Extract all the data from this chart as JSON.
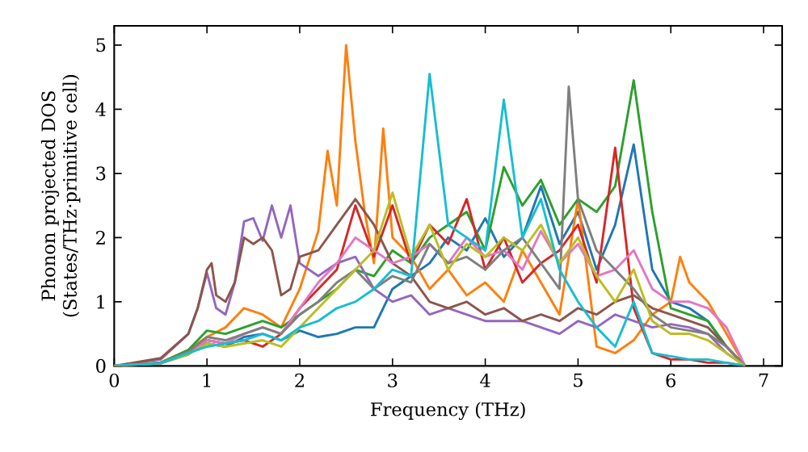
{
  "chart_data": {
    "type": "line",
    "xlabel": "Frequency (THz)",
    "ylabel": "Phonon projected DOS (States/THz·primitive cell)",
    "xlim": [
      0,
      7.2
    ],
    "ylim": [
      0,
      5.3
    ],
    "xticks": [
      0,
      1,
      2,
      3,
      4,
      5,
      6,
      7
    ],
    "yticks": [
      0,
      1,
      2,
      3,
      4,
      5
    ],
    "x": [
      0,
      0.5,
      0.8,
      1.0,
      1.2,
      1.4,
      1.6,
      1.8,
      2.0,
      2.2,
      2.4,
      2.6,
      2.8,
      3.0,
      3.2,
      3.4,
      3.6,
      3.8,
      4.0,
      4.2,
      4.4,
      4.6,
      4.8,
      5.0,
      5.2,
      5.4,
      5.6,
      5.8,
      6.0,
      6.2,
      6.4,
      6.6,
      6.8
    ],
    "series": [
      {
        "color": "#1f77b4",
        "values": [
          0,
          0.05,
          0.2,
          0.35,
          0.3,
          0.45,
          0.5,
          0.4,
          0.55,
          0.45,
          0.5,
          0.6,
          0.6,
          1.2,
          1.4,
          1.6,
          2.0,
          1.8,
          2.3,
          1.7,
          2.0,
          2.8,
          1.9,
          2.4,
          1.5,
          2.2,
          3.45,
          1.5,
          1.0,
          0.9,
          0.7,
          0.3,
          0
        ]
      },
      {
        "color": "#ff7f0e",
        "x": [
          0,
          0.5,
          0.8,
          1.0,
          1.2,
          1.4,
          1.6,
          1.8,
          2.0,
          2.2,
          2.3,
          2.4,
          2.5,
          2.6,
          2.7,
          2.8,
          2.9,
          3.0,
          3.2,
          3.4,
          3.6,
          3.8,
          4.0,
          4.2,
          4.4,
          4.6,
          4.8,
          5.0,
          5.2,
          5.4,
          5.6,
          5.8,
          6.0,
          6.1,
          6.2,
          6.4,
          6.6,
          6.8
        ],
        "values": [
          0,
          0.05,
          0.25,
          0.45,
          0.6,
          0.9,
          0.8,
          0.6,
          1.2,
          2.1,
          3.35,
          2.5,
          5.0,
          3.5,
          2.4,
          1.6,
          3.7,
          2.0,
          1.7,
          1.2,
          1.5,
          1.1,
          1.3,
          1.0,
          1.8,
          1.3,
          0.8,
          2.6,
          0.3,
          0.2,
          0.4,
          0.8,
          1.0,
          1.7,
          1.3,
          1.0,
          0.5,
          0
        ]
      },
      {
        "color": "#2ca02c",
        "values": [
          0,
          0.05,
          0.25,
          0.55,
          0.5,
          0.6,
          0.7,
          0.6,
          0.8,
          1.0,
          1.2,
          1.5,
          1.4,
          1.8,
          1.6,
          2.0,
          2.2,
          2.4,
          1.8,
          3.1,
          2.5,
          2.9,
          2.2,
          2.6,
          2.4,
          2.8,
          4.45,
          2.4,
          0.9,
          0.8,
          0.7,
          0.3,
          0
        ]
      },
      {
        "color": "#d62728",
        "values": [
          0,
          0.04,
          0.18,
          0.4,
          0.35,
          0.4,
          0.3,
          0.5,
          0.9,
          1.2,
          1.5,
          2.5,
          1.7,
          2.5,
          1.6,
          2.2,
          1.9,
          2.6,
          1.5,
          2.0,
          1.3,
          1.6,
          1.8,
          2.2,
          1.3,
          3.4,
          0.9,
          0.2,
          0.1,
          0.1,
          0.05,
          0.05,
          0
        ]
      },
      {
        "color": "#9467bd",
        "x": [
          0,
          0.5,
          0.8,
          0.9,
          1.0,
          1.1,
          1.2,
          1.3,
          1.4,
          1.5,
          1.6,
          1.7,
          1.8,
          1.9,
          2.0,
          2.2,
          2.4,
          2.6,
          2.8,
          3.0,
          3.2,
          3.4,
          3.6,
          3.8,
          4.0,
          4.2,
          4.4,
          4.6,
          4.8,
          5.0,
          5.2,
          5.4,
          5.6,
          5.8,
          6.0,
          6.2,
          6.4,
          6.6,
          6.8
        ],
        "values": [
          0,
          0.1,
          0.5,
          0.9,
          1.45,
          0.9,
          0.8,
          1.3,
          2.25,
          2.3,
          1.95,
          2.5,
          2.0,
          2.5,
          1.6,
          1.4,
          1.6,
          1.7,
          1.2,
          1.0,
          1.1,
          0.8,
          0.9,
          0.8,
          0.7,
          0.7,
          0.7,
          0.6,
          0.5,
          0.7,
          0.6,
          0.8,
          0.7,
          0.6,
          0.65,
          0.6,
          0.5,
          0.2,
          0
        ]
      },
      {
        "color": "#8c564b",
        "x": [
          0,
          0.5,
          0.8,
          0.9,
          1.0,
          1.05,
          1.1,
          1.2,
          1.3,
          1.4,
          1.5,
          1.6,
          1.7,
          1.8,
          1.9,
          2.0,
          2.2,
          2.4,
          2.6,
          2.8,
          3.0,
          3.2,
          3.4,
          3.6,
          3.8,
          4.0,
          4.2,
          4.4,
          4.6,
          4.8,
          5.0,
          5.2,
          5.4,
          5.6,
          5.8,
          6.0,
          6.2,
          6.4,
          6.6,
          6.8
        ],
        "values": [
          0,
          0.12,
          0.5,
          0.9,
          1.5,
          1.6,
          1.1,
          1.0,
          1.3,
          2.0,
          1.9,
          2.0,
          1.8,
          1.1,
          1.2,
          1.7,
          1.8,
          2.2,
          2.6,
          2.2,
          1.6,
          1.4,
          1.0,
          0.9,
          1.0,
          0.8,
          0.9,
          0.7,
          0.8,
          0.7,
          0.9,
          0.8,
          1.0,
          1.1,
          0.9,
          0.8,
          0.7,
          0.6,
          0.3,
          0
        ]
      },
      {
        "color": "#e377c2",
        "values": [
          0,
          0.04,
          0.2,
          0.4,
          0.35,
          0.5,
          0.6,
          0.5,
          0.9,
          1.3,
          1.6,
          2.0,
          1.8,
          1.6,
          1.7,
          1.9,
          1.6,
          2.0,
          1.7,
          1.8,
          1.5,
          2.1,
          1.6,
          1.9,
          1.4,
          1.5,
          1.8,
          1.2,
          1.0,
          1.0,
          0.9,
          0.6,
          0
        ]
      },
      {
        "color": "#7f7f7f",
        "x": [
          0,
          0.5,
          0.8,
          1.0,
          1.2,
          1.4,
          1.6,
          1.8,
          2.0,
          2.2,
          2.4,
          2.6,
          2.8,
          3.0,
          3.2,
          3.4,
          3.6,
          3.8,
          4.0,
          4.2,
          4.4,
          4.6,
          4.8,
          4.9,
          5.0,
          5.2,
          5.4,
          5.6,
          5.8,
          6.0,
          6.2,
          6.4,
          6.6,
          6.8
        ],
        "values": [
          0,
          0.05,
          0.22,
          0.45,
          0.4,
          0.5,
          0.6,
          0.5,
          0.8,
          1.0,
          1.3,
          1.5,
          1.2,
          1.4,
          1.3,
          1.9,
          1.6,
          1.7,
          1.5,
          1.8,
          2.0,
          1.6,
          1.2,
          4.35,
          2.6,
          1.8,
          1.5,
          1.2,
          0.8,
          0.6,
          0.55,
          0.5,
          0.3,
          0
        ]
      },
      {
        "color": "#bcbd22",
        "values": [
          0,
          0.04,
          0.18,
          0.35,
          0.3,
          0.35,
          0.4,
          0.3,
          0.6,
          0.9,
          1.2,
          1.5,
          1.8,
          2.7,
          1.7,
          2.2,
          1.5,
          1.9,
          1.7,
          2.0,
          1.8,
          2.2,
          1.6,
          2.0,
          1.4,
          1.0,
          1.5,
          0.7,
          0.5,
          0.5,
          0.4,
          0.2,
          0
        ]
      },
      {
        "color": "#17becf",
        "values": [
          0,
          0.04,
          0.2,
          0.3,
          0.35,
          0.4,
          0.5,
          0.4,
          0.6,
          0.7,
          0.9,
          1.0,
          1.2,
          1.5,
          1.4,
          4.55,
          2.2,
          2.0,
          1.8,
          4.15,
          2.0,
          2.6,
          1.5,
          1.0,
          0.6,
          0.3,
          1.0,
          0.2,
          0.15,
          0.1,
          0.1,
          0.05,
          0
        ]
      }
    ]
  }
}
